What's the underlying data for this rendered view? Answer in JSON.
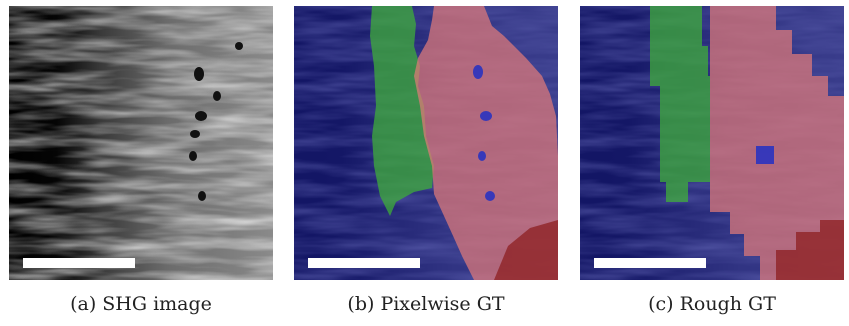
{
  "figure": {
    "panels": [
      {
        "caption": "(a) SHG image"
      },
      {
        "caption": "(b) Pixelwise GT"
      },
      {
        "caption": "(c) Rough GT"
      }
    ]
  },
  "colors": {
    "class_blue": "#1a1f8c",
    "class_green": "#3fae3a",
    "class_red": "#e07a78",
    "class_darkred": "#8a1a1a",
    "scale_bar": "#ffffff"
  }
}
